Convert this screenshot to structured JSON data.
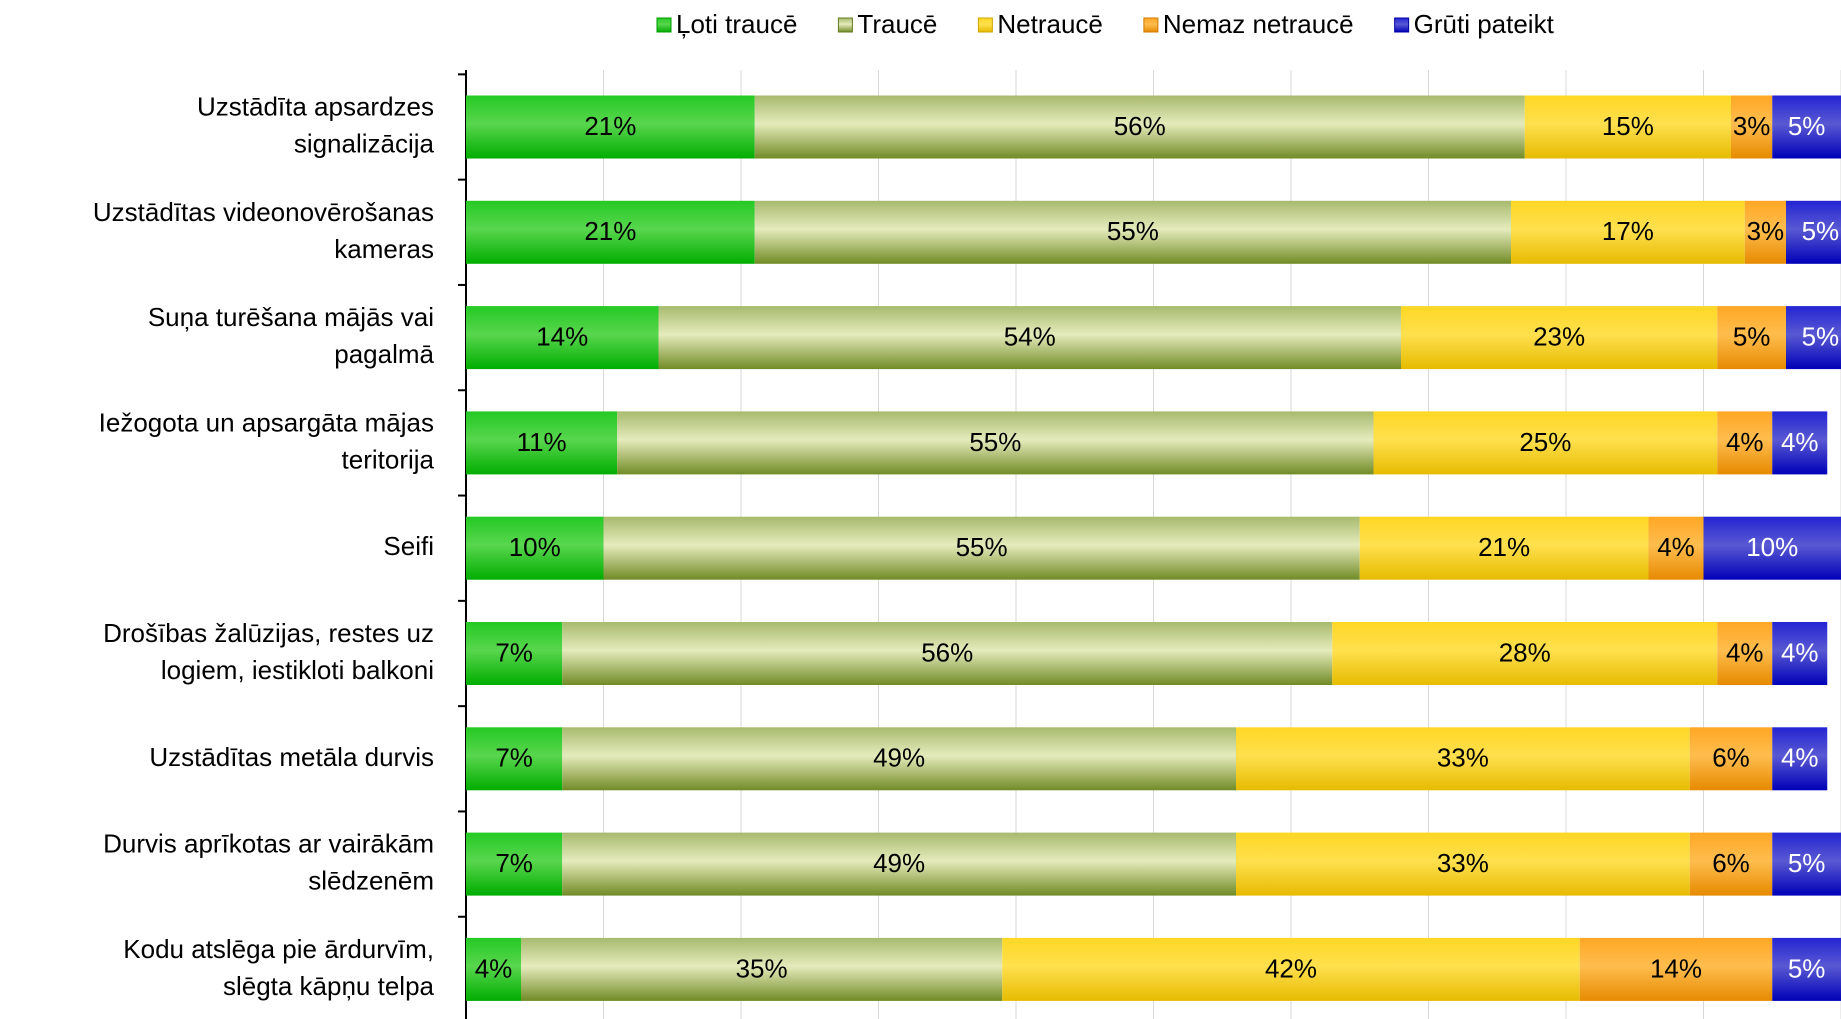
{
  "chart_data": {
    "type": "stacked_bar_horizontal",
    "categories": [
      "Uzstādīta apsardzes\nsignalizācija",
      "Uzstādītas videonovērošanas\nkameras",
      "Suņa turēšana mājās vai\npagalmā",
      "Iežogota un apsargāta mājas\nteritorija",
      "Seifi",
      "Drošības žalūzijas, restes uz\nlogiem, iestikloti balkoni",
      "Uzstādītas metāla durvis",
      "Durvis aprīkotas ar vairākām\nslēdzenēm",
      "Kodu atslēga pie ārdurvīm,\nslēgta kāpņu telpa"
    ],
    "series": [
      {
        "name": "Ļoti traucē",
        "color": "#00c000",
        "label_color": "#000000",
        "values": [
          21,
          21,
          14,
          11,
          10,
          7,
          7,
          7,
          4
        ],
        "value_labels": [
          "21%",
          "21%",
          "14%",
          "11%",
          "10%",
          "7%",
          "7%",
          "7%",
          "4%"
        ]
      },
      {
        "name": "Traucē",
        "color": "#7d9a2a",
        "label_color": "#000000",
        "values": [
          56,
          55,
          54,
          55,
          55,
          56,
          49,
          49,
          35
        ],
        "value_labels": [
          "56%",
          "55%",
          "54%",
          "55%",
          "55%",
          "56%",
          "49%",
          "49%",
          "35%"
        ]
      },
      {
        "name": "Netraucē",
        "color": "#ffd000",
        "label_color": "#000000",
        "values": [
          15,
          17,
          23,
          25,
          21,
          28,
          33,
          33,
          42
        ],
        "value_labels": [
          "15%",
          "17%",
          "23%",
          "25%",
          "21%",
          "28%",
          "33%",
          "33%",
          "42%"
        ]
      },
      {
        "name": "Nemaz netraucē",
        "color": "#ff9900",
        "label_color": "#000000",
        "values": [
          3,
          3,
          5,
          4,
          4,
          4,
          6,
          6,
          14
        ],
        "value_labels": [
          "3%",
          "3%",
          "5%",
          "4%",
          "4%",
          "4%",
          "6%",
          "6%",
          "14%"
        ]
      },
      {
        "name": "Grūti pateikt",
        "color": "#0000cc",
        "label_color": "#ffffff",
        "values": [
          5,
          5,
          5,
          4,
          10,
          4,
          4,
          5,
          5
        ],
        "value_labels": [
          "5%",
          "5%",
          "5%",
          "4%",
          "10%",
          "4%",
          "4%",
          "5%",
          "5%"
        ]
      }
    ],
    "xlim": [
      0,
      100
    ],
    "xticks": [
      0,
      10,
      20,
      30,
      40,
      50,
      60,
      70,
      80,
      90,
      100
    ],
    "grid": true,
    "legend": "top"
  }
}
